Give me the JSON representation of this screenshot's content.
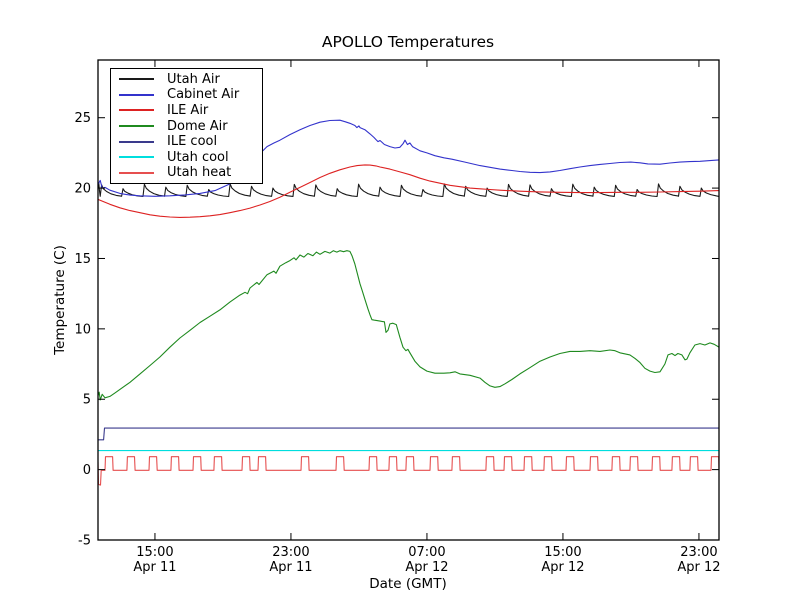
{
  "figure": {
    "title": "APOLLO Temperatures",
    "xlabel": "Date (GMT)",
    "ylabel": "Temperature (C)"
  },
  "chart_data": {
    "type": "line",
    "title": "APOLLO Temperatures",
    "xlabel": "Date (GMT)",
    "ylabel": "Temperature (C)",
    "x_unit": "hours since Apr 11 00:00 GMT",
    "xlim_hours": [
      11.65,
      48.18
    ],
    "ylim": [
      -5,
      29.1
    ],
    "grid": false,
    "legend_position": "upper left",
    "xticks": [
      {
        "h": 15,
        "time": "15:00",
        "date": "Apr 11"
      },
      {
        "h": 23,
        "time": "23:00",
        "date": "Apr 11"
      },
      {
        "h": 31,
        "time": "07:00",
        "date": "Apr 12"
      },
      {
        "h": 39,
        "time": "15:00",
        "date": "Apr 12"
      },
      {
        "h": 47,
        "time": "23:00",
        "date": "Apr 12"
      }
    ],
    "yticks": [
      -5,
      0,
      5,
      10,
      15,
      20,
      25
    ],
    "series": [
      {
        "name": "Utah Air",
        "color": "#1a1a1a",
        "sawtooth": {
          "start_h": 11.78,
          "end_h": 48.18,
          "period_h": 1.26,
          "peak": 20.18,
          "trough": 19.36,
          "peak_jitter": [
            0.05,
            -0.22,
            0.1,
            -0.12,
            0.02,
            -0.28,
            0.12,
            -0.05,
            -0.18,
            0.08
          ],
          "lead_in": [
            [
              11.65,
              20.0
            ],
            [
              11.7,
              20.35
            ],
            [
              11.74,
              19.8
            ]
          ]
        }
      },
      {
        "name": "Cabinet Air",
        "color": "#3333cc",
        "points": [
          [
            11.65,
            20.25
          ],
          [
            11.78,
            20.55
          ],
          [
            11.9,
            20.0
          ],
          [
            12.06,
            20.05
          ],
          [
            12.35,
            19.85
          ],
          [
            12.94,
            19.62
          ],
          [
            13.53,
            19.5
          ],
          [
            14.12,
            19.45
          ],
          [
            15.0,
            19.42
          ],
          [
            15.88,
            19.45
          ],
          [
            16.76,
            19.52
          ],
          [
            17.65,
            19.62
          ],
          [
            18.53,
            19.82
          ],
          [
            19.41,
            20.3
          ],
          [
            20.0,
            20.85
          ],
          [
            20.59,
            21.6
          ],
          [
            21.18,
            22.45
          ],
          [
            21.59,
            22.95
          ],
          [
            22.0,
            23.2
          ],
          [
            22.35,
            23.4
          ],
          [
            22.94,
            23.8
          ],
          [
            23.53,
            24.15
          ],
          [
            24.12,
            24.45
          ],
          [
            24.71,
            24.68
          ],
          [
            25.29,
            24.8
          ],
          [
            25.88,
            24.82
          ],
          [
            26.18,
            24.72
          ],
          [
            26.47,
            24.6
          ],
          [
            26.76,
            24.45
          ],
          [
            26.88,
            24.3
          ],
          [
            27.0,
            24.42
          ],
          [
            27.06,
            24.3
          ],
          [
            27.35,
            24.15
          ],
          [
            27.65,
            23.85
          ],
          [
            27.88,
            23.6
          ],
          [
            28.0,
            23.45
          ],
          [
            28.12,
            23.3
          ],
          [
            28.24,
            23.38
          ],
          [
            28.5,
            23.1
          ],
          [
            28.82,
            22.95
          ],
          [
            29.12,
            22.85
          ],
          [
            29.41,
            22.9
          ],
          [
            29.59,
            23.15
          ],
          [
            29.71,
            23.4
          ],
          [
            29.85,
            23.1
          ],
          [
            30.0,
            23.2
          ],
          [
            30.15,
            22.95
          ],
          [
            30.59,
            22.65
          ],
          [
            31.0,
            22.5
          ],
          [
            31.47,
            22.3
          ],
          [
            32.0,
            22.15
          ],
          [
            32.47,
            22.05
          ],
          [
            33.24,
            21.85
          ],
          [
            34.12,
            21.6
          ],
          [
            35.29,
            21.35
          ],
          [
            36.0,
            21.25
          ],
          [
            36.47,
            21.18
          ],
          [
            37.06,
            21.12
          ],
          [
            37.65,
            21.1
          ],
          [
            38.24,
            21.15
          ],
          [
            38.82,
            21.25
          ],
          [
            39.41,
            21.38
          ],
          [
            40.0,
            21.5
          ],
          [
            40.59,
            21.6
          ],
          [
            41.18,
            21.68
          ],
          [
            41.76,
            21.75
          ],
          [
            42.35,
            21.82
          ],
          [
            43.0,
            21.85
          ],
          [
            43.53,
            21.8
          ],
          [
            44.0,
            21.72
          ],
          [
            44.71,
            21.7
          ],
          [
            45.29,
            21.78
          ],
          [
            45.88,
            21.85
          ],
          [
            46.47,
            21.88
          ],
          [
            47.06,
            21.9
          ],
          [
            47.65,
            21.95
          ],
          [
            48.18,
            22.0
          ]
        ]
      },
      {
        "name": "ILE Air",
        "color": "#dd2222",
        "points": [
          [
            11.65,
            19.2
          ],
          [
            12.35,
            18.85
          ],
          [
            12.94,
            18.6
          ],
          [
            13.53,
            18.4
          ],
          [
            14.12,
            18.25
          ],
          [
            14.71,
            18.1
          ],
          [
            15.29,
            18.0
          ],
          [
            15.88,
            17.95
          ],
          [
            16.47,
            17.92
          ],
          [
            17.06,
            17.93
          ],
          [
            17.65,
            17.97
          ],
          [
            18.24,
            18.03
          ],
          [
            18.82,
            18.12
          ],
          [
            19.41,
            18.25
          ],
          [
            20.0,
            18.4
          ],
          [
            20.59,
            18.58
          ],
          [
            21.18,
            18.8
          ],
          [
            21.76,
            19.05
          ],
          [
            22.35,
            19.35
          ],
          [
            22.94,
            19.7
          ],
          [
            23.53,
            20.05
          ],
          [
            24.12,
            20.4
          ],
          [
            24.71,
            20.75
          ],
          [
            25.29,
            21.05
          ],
          [
            25.88,
            21.3
          ],
          [
            26.47,
            21.5
          ],
          [
            26.9,
            21.6
          ],
          [
            27.35,
            21.65
          ],
          [
            27.65,
            21.63
          ],
          [
            28.0,
            21.58
          ],
          [
            28.24,
            21.5
          ],
          [
            28.82,
            21.35
          ],
          [
            29.41,
            21.15
          ],
          [
            30.0,
            20.95
          ],
          [
            30.59,
            20.7
          ],
          [
            31.18,
            20.5
          ],
          [
            31.76,
            20.35
          ],
          [
            32.35,
            20.2
          ],
          [
            32.94,
            20.1
          ],
          [
            33.53,
            20.0
          ],
          [
            34.12,
            19.95
          ],
          [
            34.71,
            19.9
          ],
          [
            35.29,
            19.85
          ],
          [
            36.47,
            19.78
          ],
          [
            37.65,
            19.73
          ],
          [
            38.82,
            19.7
          ],
          [
            40.0,
            19.68
          ],
          [
            41.18,
            19.68
          ],
          [
            42.35,
            19.7
          ],
          [
            43.53,
            19.7
          ],
          [
            44.71,
            19.72
          ],
          [
            45.88,
            19.75
          ],
          [
            47.06,
            19.78
          ],
          [
            48.18,
            19.82
          ]
        ]
      },
      {
        "name": "Dome Air",
        "color": "#1f8a1f",
        "points": [
          [
            11.65,
            5.25
          ],
          [
            11.72,
            5.5
          ],
          [
            11.78,
            4.95
          ],
          [
            11.9,
            5.35
          ],
          [
            12.06,
            5.1
          ],
          [
            12.35,
            5.2
          ],
          [
            12.65,
            5.45
          ],
          [
            12.94,
            5.7
          ],
          [
            13.53,
            6.2
          ],
          [
            14.12,
            6.8
          ],
          [
            14.71,
            7.4
          ],
          [
            15.29,
            8.0
          ],
          [
            15.88,
            8.7
          ],
          [
            16.47,
            9.35
          ],
          [
            17.06,
            9.9
          ],
          [
            17.65,
            10.45
          ],
          [
            18.24,
            10.9
          ],
          [
            18.82,
            11.35
          ],
          [
            19.41,
            11.9
          ],
          [
            20.0,
            12.4
          ],
          [
            20.3,
            12.6
          ],
          [
            20.45,
            12.5
          ],
          [
            20.59,
            12.9
          ],
          [
            21.0,
            13.3
          ],
          [
            21.12,
            13.15
          ],
          [
            21.59,
            13.85
          ],
          [
            22.0,
            14.1
          ],
          [
            22.12,
            13.95
          ],
          [
            22.35,
            14.45
          ],
          [
            22.7,
            14.7
          ],
          [
            22.94,
            14.85
          ],
          [
            23.18,
            15.05
          ],
          [
            23.3,
            14.9
          ],
          [
            23.53,
            15.25
          ],
          [
            23.76,
            15.1
          ],
          [
            24.0,
            15.35
          ],
          [
            24.29,
            15.2
          ],
          [
            24.5,
            15.45
          ],
          [
            24.71,
            15.3
          ],
          [
            25.0,
            15.5
          ],
          [
            25.29,
            15.38
          ],
          [
            25.5,
            15.55
          ],
          [
            25.7,
            15.45
          ],
          [
            25.88,
            15.55
          ],
          [
            26.1,
            15.48
          ],
          [
            26.29,
            15.55
          ],
          [
            26.47,
            15.5
          ],
          [
            26.59,
            15.2
          ],
          [
            26.76,
            14.6
          ],
          [
            27.06,
            13.2
          ],
          [
            27.2,
            12.7
          ],
          [
            27.35,
            12.1
          ],
          [
            27.53,
            11.4
          ],
          [
            27.65,
            11.0
          ],
          [
            27.76,
            10.65
          ],
          [
            27.88,
            10.62
          ],
          [
            28.24,
            10.55
          ],
          [
            28.5,
            10.5
          ],
          [
            28.59,
            9.75
          ],
          [
            28.71,
            9.9
          ],
          [
            28.82,
            10.35
          ],
          [
            29.0,
            10.4
          ],
          [
            29.2,
            10.3
          ],
          [
            29.41,
            9.4
          ],
          [
            29.59,
            8.7
          ],
          [
            29.76,
            8.45
          ],
          [
            29.88,
            8.55
          ],
          [
            30.0,
            8.3
          ],
          [
            30.29,
            7.7
          ],
          [
            30.59,
            7.3
          ],
          [
            31.0,
            7.0
          ],
          [
            31.47,
            6.85
          ],
          [
            32.0,
            6.85
          ],
          [
            32.35,
            6.88
          ],
          [
            32.65,
            6.95
          ],
          [
            32.94,
            6.8
          ],
          [
            33.53,
            6.7
          ],
          [
            34.12,
            6.5
          ],
          [
            34.41,
            6.2
          ],
          [
            34.71,
            5.95
          ],
          [
            35.0,
            5.85
          ],
          [
            35.29,
            5.9
          ],
          [
            35.59,
            6.1
          ],
          [
            36.0,
            6.4
          ],
          [
            36.47,
            6.8
          ],
          [
            37.0,
            7.2
          ],
          [
            37.65,
            7.7
          ],
          [
            38.24,
            8.0
          ],
          [
            38.82,
            8.25
          ],
          [
            39.41,
            8.4
          ],
          [
            40.0,
            8.4
          ],
          [
            40.59,
            8.45
          ],
          [
            41.18,
            8.4
          ],
          [
            41.76,
            8.5
          ],
          [
            42.06,
            8.45
          ],
          [
            42.35,
            8.3
          ],
          [
            42.94,
            8.15
          ],
          [
            43.24,
            7.9
          ],
          [
            43.53,
            7.6
          ],
          [
            43.82,
            7.2
          ],
          [
            44.12,
            7.0
          ],
          [
            44.41,
            6.9
          ],
          [
            44.71,
            6.95
          ],
          [
            45.0,
            7.5
          ],
          [
            45.18,
            8.15
          ],
          [
            45.41,
            8.25
          ],
          [
            45.59,
            8.1
          ],
          [
            45.76,
            8.25
          ],
          [
            46.0,
            8.15
          ],
          [
            46.18,
            7.8
          ],
          [
            46.29,
            7.85
          ],
          [
            46.47,
            8.3
          ],
          [
            46.76,
            8.85
          ],
          [
            47.06,
            8.95
          ],
          [
            47.35,
            8.85
          ],
          [
            47.65,
            9.0
          ],
          [
            47.9,
            8.9
          ],
          [
            48.18,
            8.7
          ]
        ]
      },
      {
        "name": "ILE cool",
        "color": "#3a3a8c",
        "points": [
          [
            11.65,
            2.12
          ],
          [
            11.98,
            2.12
          ],
          [
            12.03,
            2.95
          ],
          [
            48.18,
            2.95
          ]
        ]
      },
      {
        "name": "Utah cool",
        "color": "#00dede",
        "points": [
          [
            11.65,
            1.35
          ],
          [
            48.18,
            1.35
          ]
        ]
      },
      {
        "name": "Utah heat",
        "color": "#e64f4f",
        "pulses": {
          "base": -0.05,
          "high": 0.92,
          "width_h": 0.45,
          "end_h": 48.18,
          "prefix": [
            [
              11.65,
              0.55
            ],
            [
              11.68,
              -1.05
            ],
            [
              11.8,
              -1.1
            ],
            [
              11.84,
              -0.05
            ]
          ],
          "starts_h": [
            12.06,
            13.35,
            14.65,
            15.94,
            17.24,
            18.47,
            20.12,
            21.06,
            23.59,
            25.65,
            27.59,
            28.76,
            29.76,
            31.18,
            32.47,
            34.47,
            35.53,
            36.71,
            37.88,
            39.18,
            40.59,
            41.88,
            42.94,
            44.24,
            45.41,
            46.47,
            47.71
          ]
        }
      }
    ]
  }
}
